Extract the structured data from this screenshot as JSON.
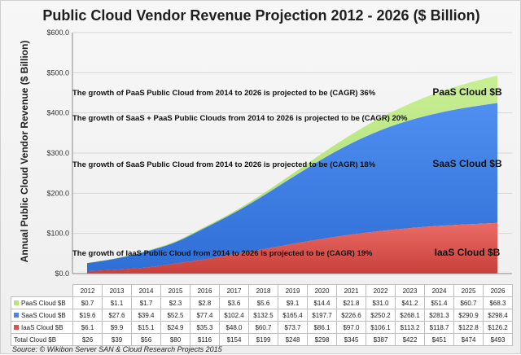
{
  "chart_data": {
    "type": "area",
    "stacked": true,
    "title": "Public Cloud Vendor Revenue Projection 2012 - 2026 ($ Billion)",
    "ylabel": "Annual Public Cloud Vendor Revenue ($ Billion)",
    "xlabel": "",
    "ylim": [
      0,
      600
    ],
    "y_ticks": [
      "$0.0",
      "$100.0",
      "$200.0",
      "$300.0",
      "$400.0",
      "$500.0",
      "$600.0"
    ],
    "y_tick_values": [
      0,
      100,
      200,
      300,
      400,
      500,
      600
    ],
    "categories": [
      "2012",
      "2013",
      "2014",
      "2015",
      "2016",
      "2017",
      "2018",
      "2019",
      "2020",
      "2021",
      "2022",
      "2023",
      "2024",
      "2025",
      "2026"
    ],
    "series": [
      {
        "name": "IaaS Cloud $B",
        "color": "#d9534f",
        "values": [
          6.1,
          9.9,
          15.1,
          24.9,
          35.3,
          48.0,
          60.7,
          73.7,
          86.1,
          97.0,
          106.1,
          113.2,
          118.7,
          122.8,
          126.2
        ],
        "display": [
          "$6.1",
          "$9.9",
          "$15.1",
          "$24.9",
          "$35.3",
          "$48.0",
          "$60.7",
          "$73.7",
          "$86.1",
          "$97.0",
          "$106.1",
          "$113.2",
          "$118.7",
          "$122.8",
          "$126.2"
        ]
      },
      {
        "name": "SaaS Cloud $B",
        "color": "#4a86e8",
        "values": [
          19.6,
          27.6,
          39.4,
          52.5,
          77.4,
          102.4,
          132.5,
          165.4,
          197.7,
          226.6,
          250.2,
          268.1,
          281.3,
          290.9,
          298.4
        ],
        "display": [
          "$19.6",
          "$27.6",
          "$39.4",
          "$52.5",
          "$77.4",
          "$102.4",
          "$132.5",
          "$165.4",
          "$197.7",
          "$226.6",
          "$250.2",
          "$268.1",
          "$281.3",
          "$290.9",
          "$298.4"
        ]
      },
      {
        "name": "PaaS Cloud $B",
        "color": "#b5e37a",
        "values": [
          0.7,
          1.1,
          1.7,
          2.3,
          2.8,
          3.6,
          5.6,
          9.1,
          14.4,
          21.8,
          31.0,
          41.2,
          51.4,
          60.7,
          68.3
        ],
        "display": [
          "$0.7",
          "$1.1",
          "$1.7",
          "$2.3",
          "$2.8",
          "$3.6",
          "$5.6",
          "$9.1",
          "$14.4",
          "$21.8",
          "$31.0",
          "$41.2",
          "$51.4",
          "$60.7",
          "$68.3"
        ]
      }
    ],
    "total": {
      "name": "Total Cloud $B",
      "values": [
        26,
        39,
        56,
        80,
        116,
        154,
        199,
        248,
        298,
        345,
        387,
        422,
        451,
        474,
        493
      ],
      "display": [
        "$26",
        "$39",
        "$56",
        "$80",
        "$116",
        "$154",
        "$199",
        "$248",
        "$298",
        "$345",
        "$387",
        "$422",
        "$451",
        "$474",
        "$493"
      ]
    },
    "area_labels": {
      "paas": "PaaS Cloud $B",
      "saas": "SaaS Cloud $B",
      "iaas": "IaaS Cloud $B"
    },
    "annotations": {
      "paas": "The growth of PaaS Public Cloud from 2014 to 2026 is projected to be (CAGR) 36%",
      "saas_paas": "The growth of SaaS + PaaS Public Clouds from 2014 to 2026 is projected to be (CAGR) 20%",
      "saas": "The growth of SaaS Public Cloud from 2014 to 2026 is projected to be (CAGR) 18%",
      "iaas": "The growth of IaaS Public Cloud from 2014 to 2026 is projected to be (CAGR) 19%"
    },
    "source": "Source: © Wikibon Server SAN & Cloud Research Projects 2015",
    "grid": true
  }
}
